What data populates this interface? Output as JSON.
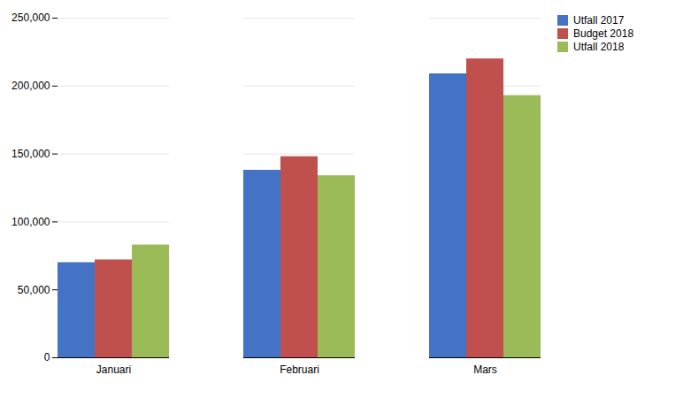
{
  "chart_data": {
    "type": "bar",
    "categories": [
      "Januari",
      "Februari",
      "Mars"
    ],
    "series": [
      {
        "name": "Utfall 2017",
        "color": "#4472C4",
        "values": [
          70000,
          138000,
          209000
        ]
      },
      {
        "name": "Budget 2018",
        "color": "#C0504D",
        "values": [
          72000,
          148000,
          220000
        ]
      },
      {
        "name": "Utfall 2018",
        "color": "#9BBB59",
        "values": [
          83000,
          134000,
          193000
        ]
      }
    ],
    "ylim": [
      0,
      250000
    ],
    "yticks": [
      0,
      {
        "value": 50000,
        "label": "50,000"
      },
      {
        "value": 100000,
        "label": "100,000"
      },
      {
        "value": 150000,
        "label": "150,000"
      },
      {
        "value": 200000,
        "label": "200,000"
      },
      {
        "value": 250000,
        "label": "250,000"
      }
    ],
    "grid": true,
    "legend": "right"
  }
}
